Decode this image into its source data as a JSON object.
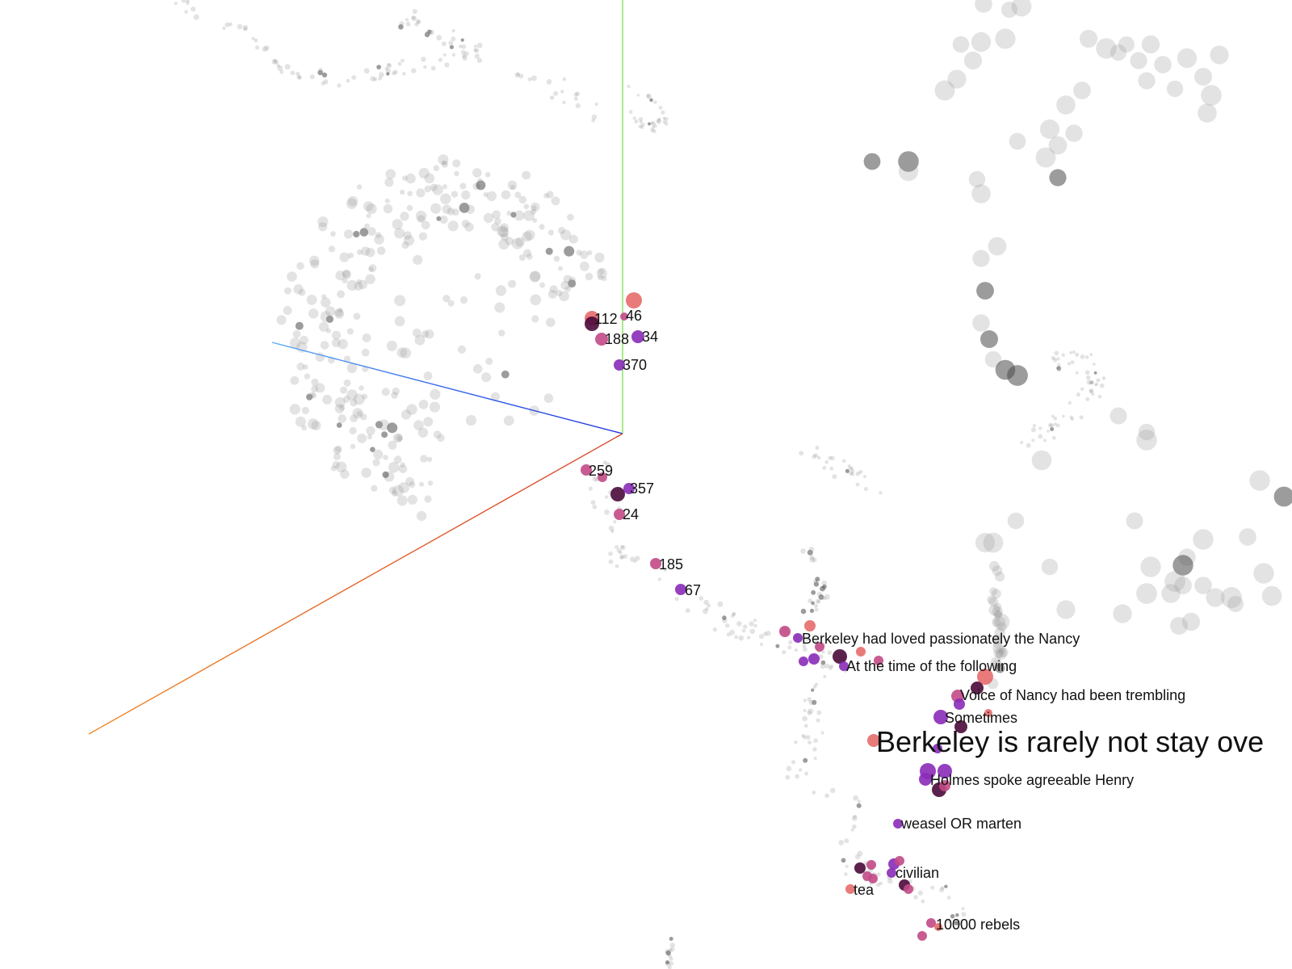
{
  "colors": {
    "axis_x_start": "#d9432b",
    "axis_x_end": "#f08a28",
    "axis_y": "#7fe05a",
    "axis_z_start": "#1b2fe0",
    "axis_z_end": "#5aa8f5",
    "point_background": "#9a9a9a",
    "highlight_light": "#e56b6b",
    "highlight_pink": "#c24a86",
    "highlight_purple": "#8a2bb8",
    "highlight_dark": "#4a0a3a",
    "label_text": "#111111"
  },
  "labels": {
    "l112": "112",
    "l46": "46",
    "l188": "188",
    "l34": "34",
    "l370": "370",
    "l259": "259",
    "l357": "357",
    "l24": "24",
    "l185": "185",
    "l67": "67",
    "berkeley_loved": "Berkeley had loved passionately the Nancy",
    "at_the_time": "At the time of the following",
    "voice_nancy": "Voice of Nancy had been trembling",
    "sometimes": "Sometimes",
    "berkeley_rarely": "Berkeley is rarely not stay ove",
    "holmes": "Holmes spoke agreeable Henry",
    "weasel": "weasel OR marten",
    "civilian": "civilian",
    "tea": "tea",
    "rebels": "10000 rebels"
  }
}
